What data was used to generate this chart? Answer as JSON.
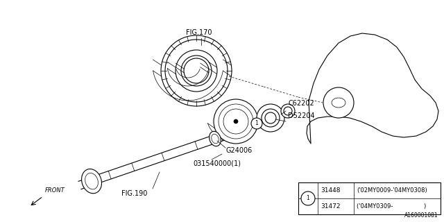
{
  "bg_color": "#ffffff",
  "line_color": "#000000",
  "image_id": "A160001081",
  "fig_w": 6.4,
  "fig_h": 3.2,
  "dpi": 100,
  "table": {
    "rows": [
      {
        "part_num": "31448",
        "desc": "('02MY0009-'04MY0308)"
      },
      {
        "part_num": "31472",
        "desc": "('04MY0309-                 )"
      }
    ]
  }
}
